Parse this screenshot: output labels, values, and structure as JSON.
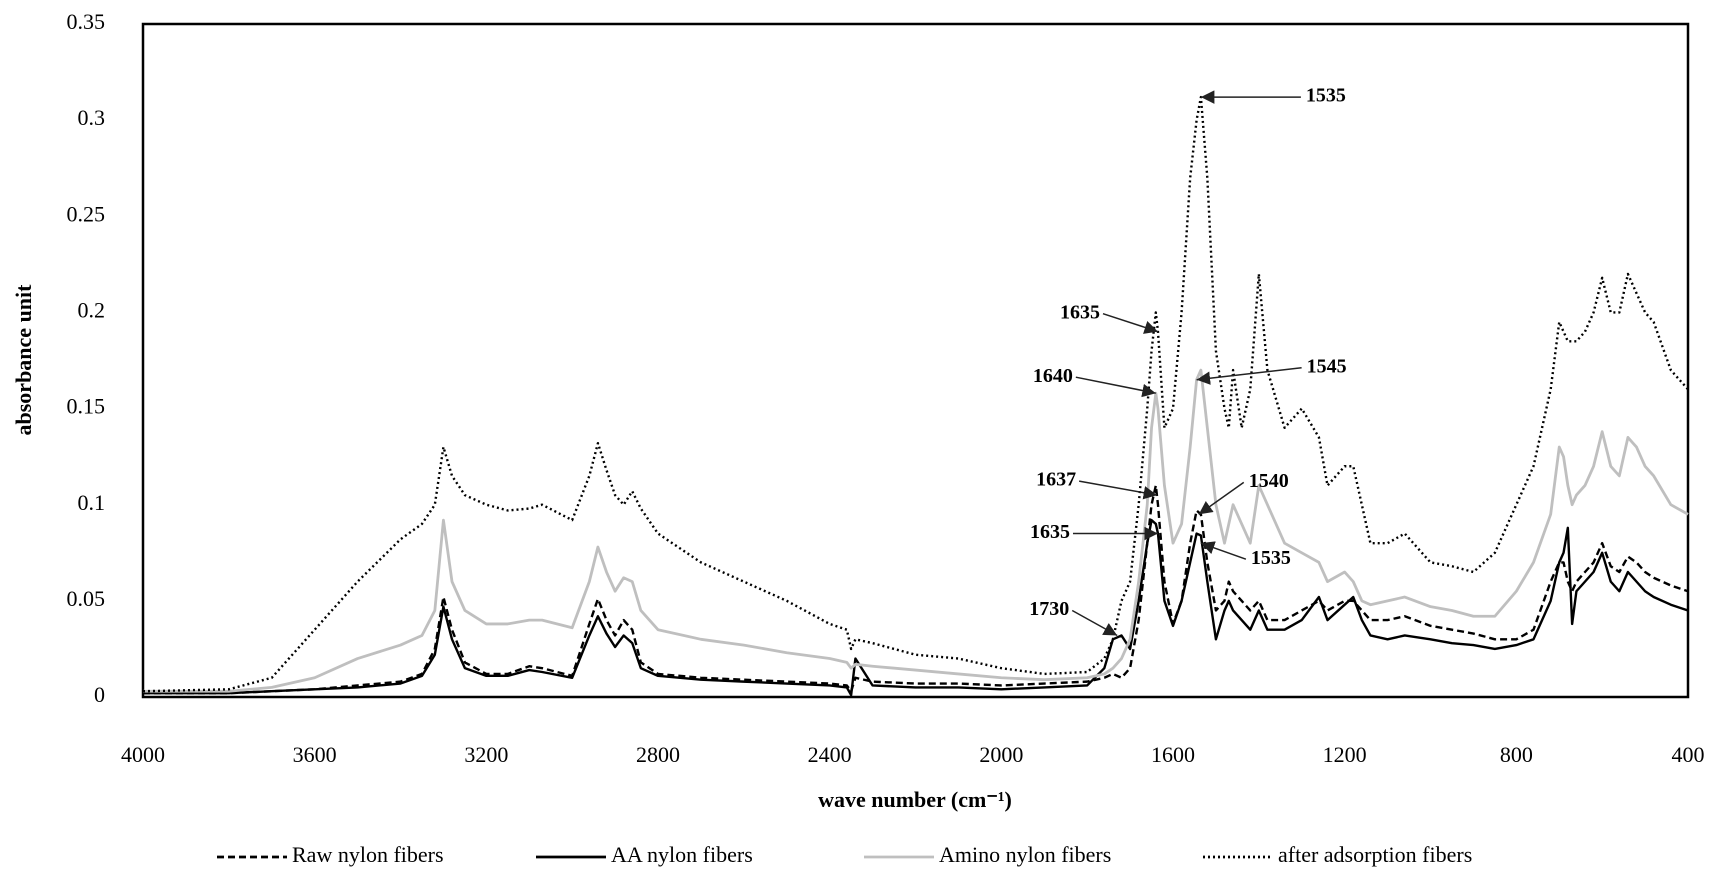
{
  "chart_data": {
    "type": "line",
    "xlabel": "wave number (cm⁻¹)",
    "ylabel": "absorbance unit",
    "xlim": [
      4000,
      400
    ],
    "xticks": [
      4000,
      3600,
      3200,
      2800,
      2400,
      2000,
      1600,
      1200,
      800,
      400
    ],
    "ylim": [
      0,
      0.35
    ],
    "yticks": [
      0,
      0.05,
      0.1,
      0.15,
      0.2,
      0.25,
      0.3,
      0.35
    ],
    "grid": false,
    "legend": "bottom",
    "x": [
      4000,
      3800,
      3700,
      3600,
      3500,
      3400,
      3350,
      3320,
      3300,
      3280,
      3250,
      3200,
      3150,
      3100,
      3070,
      3000,
      2960,
      2940,
      2920,
      2900,
      2880,
      2860,
      2840,
      2800,
      2700,
      2600,
      2500,
      2400,
      2360,
      2350,
      2340,
      2300,
      2200,
      2100,
      2000,
      1900,
      1800,
      1760,
      1740,
      1720,
      1700,
      1680,
      1660,
      1650,
      1640,
      1635,
      1620,
      1600,
      1580,
      1560,
      1545,
      1535,
      1520,
      1500,
      1480,
      1470,
      1460,
      1440,
      1420,
      1400,
      1380,
      1340,
      1300,
      1260,
      1240,
      1200,
      1180,
      1160,
      1140,
      1100,
      1060,
      1000,
      950,
      900,
      850,
      800,
      760,
      720,
      700,
      690,
      680,
      670,
      660,
      640,
      620,
      600,
      580,
      560,
      540,
      520,
      500,
      480,
      440,
      400
    ],
    "series": [
      {
        "name": "Raw nylon fibers",
        "color": "#000000",
        "line_style": "dashed",
        "values": [
          0.002,
          0.002,
          0.003,
          0.004,
          0.006,
          0.008,
          0.012,
          0.025,
          0.052,
          0.035,
          0.018,
          0.012,
          0.012,
          0.016,
          0.015,
          0.011,
          0.038,
          0.051,
          0.04,
          0.032,
          0.04,
          0.035,
          0.018,
          0.012,
          0.01,
          0.009,
          0.008,
          0.007,
          0.006,
          0.003,
          0.01,
          0.008,
          0.007,
          0.007,
          0.006,
          0.007,
          0.008,
          0.01,
          0.012,
          0.01,
          0.015,
          0.04,
          0.08,
          0.1,
          0.11,
          0.1,
          0.06,
          0.038,
          0.05,
          0.08,
          0.097,
          0.095,
          0.07,
          0.045,
          0.05,
          0.06,
          0.055,
          0.05,
          0.045,
          0.05,
          0.04,
          0.04,
          0.045,
          0.05,
          0.045,
          0.05,
          0.05,
          0.045,
          0.04,
          0.04,
          0.042,
          0.037,
          0.035,
          0.033,
          0.03,
          0.03,
          0.035,
          0.06,
          0.07,
          0.07,
          0.06,
          0.055,
          0.06,
          0.065,
          0.07,
          0.08,
          0.068,
          0.065,
          0.073,
          0.07,
          0.065,
          0.062,
          0.058,
          0.055
        ]
      },
      {
        "name": "AA nylon fibers",
        "color": "#000000",
        "line_style": "solid",
        "values": [
          0.002,
          0.002,
          0.003,
          0.004,
          0.005,
          0.007,
          0.011,
          0.022,
          0.047,
          0.03,
          0.015,
          0.011,
          0.011,
          0.014,
          0.013,
          0.01,
          0.032,
          0.042,
          0.033,
          0.026,
          0.032,
          0.028,
          0.015,
          0.011,
          0.009,
          0.008,
          0.007,
          0.006,
          0.005,
          0.001,
          0.02,
          0.006,
          0.005,
          0.005,
          0.004,
          0.005,
          0.006,
          0.015,
          0.03,
          0.032,
          0.025,
          0.05,
          0.08,
          0.092,
          0.09,
          0.085,
          0.05,
          0.037,
          0.05,
          0.07,
          0.085,
          0.084,
          0.06,
          0.03,
          0.045,
          0.05,
          0.045,
          0.04,
          0.035,
          0.045,
          0.035,
          0.035,
          0.04,
          0.052,
          0.04,
          0.048,
          0.052,
          0.04,
          0.032,
          0.03,
          0.032,
          0.03,
          0.028,
          0.027,
          0.025,
          0.027,
          0.03,
          0.05,
          0.07,
          0.075,
          0.088,
          0.038,
          0.055,
          0.06,
          0.065,
          0.075,
          0.06,
          0.055,
          0.065,
          0.06,
          0.055,
          0.052,
          0.048,
          0.045
        ]
      },
      {
        "name": "Amino nylon fibers",
        "color": "#bfbfbf",
        "line_style": "solid",
        "values": [
          0.003,
          0.003,
          0.005,
          0.01,
          0.02,
          0.027,
          0.032,
          0.045,
          0.092,
          0.06,
          0.045,
          0.038,
          0.038,
          0.04,
          0.04,
          0.036,
          0.06,
          0.078,
          0.065,
          0.055,
          0.062,
          0.06,
          0.045,
          0.035,
          0.03,
          0.027,
          0.023,
          0.02,
          0.018,
          0.015,
          0.017,
          0.016,
          0.014,
          0.012,
          0.01,
          0.009,
          0.01,
          0.012,
          0.015,
          0.02,
          0.03,
          0.06,
          0.1,
          0.14,
          0.158,
          0.15,
          0.11,
          0.08,
          0.09,
          0.13,
          0.165,
          0.17,
          0.14,
          0.1,
          0.08,
          0.09,
          0.1,
          0.09,
          0.08,
          0.11,
          0.1,
          0.08,
          0.075,
          0.07,
          0.06,
          0.065,
          0.06,
          0.05,
          0.048,
          0.05,
          0.052,
          0.047,
          0.045,
          0.042,
          0.042,
          0.055,
          0.07,
          0.095,
          0.13,
          0.125,
          0.11,
          0.1,
          0.105,
          0.11,
          0.12,
          0.138,
          0.12,
          0.115,
          0.135,
          0.13,
          0.12,
          0.115,
          0.1,
          0.095
        ]
      },
      {
        "name": "after adsorption fibers",
        "color": "#000000",
        "line_style": "dotted",
        "values": [
          0.003,
          0.004,
          0.01,
          0.035,
          0.06,
          0.082,
          0.09,
          0.1,
          0.13,
          0.115,
          0.105,
          0.1,
          0.097,
          0.098,
          0.1,
          0.092,
          0.115,
          0.132,
          0.118,
          0.105,
          0.1,
          0.107,
          0.098,
          0.085,
          0.07,
          0.06,
          0.05,
          0.038,
          0.035,
          0.025,
          0.03,
          0.028,
          0.022,
          0.02,
          0.015,
          0.012,
          0.013,
          0.02,
          0.03,
          0.05,
          0.06,
          0.1,
          0.15,
          0.18,
          0.2,
          0.19,
          0.14,
          0.15,
          0.2,
          0.27,
          0.3,
          0.312,
          0.27,
          0.18,
          0.15,
          0.14,
          0.17,
          0.14,
          0.16,
          0.22,
          0.17,
          0.14,
          0.15,
          0.135,
          0.11,
          0.12,
          0.12,
          0.1,
          0.08,
          0.08,
          0.085,
          0.07,
          0.068,
          0.065,
          0.075,
          0.1,
          0.12,
          0.16,
          0.195,
          0.19,
          0.185,
          0.185,
          0.185,
          0.19,
          0.2,
          0.218,
          0.2,
          0.2,
          0.22,
          0.21,
          0.2,
          0.195,
          0.17,
          0.16
        ]
      }
    ],
    "annotations": [
      {
        "text": "1535",
        "x": 1535,
        "y": 0.312
      },
      {
        "text": "1635",
        "x": 1635,
        "y": 0.19
      },
      {
        "text": "1640",
        "x": 1640,
        "y": 0.158
      },
      {
        "text": "1545",
        "x": 1545,
        "y": 0.165
      },
      {
        "text": "1637",
        "x": 1637,
        "y": 0.105
      },
      {
        "text": "1540",
        "x": 1540,
        "y": 0.095
      },
      {
        "text": "1635",
        "x": 1635,
        "y": 0.085
      },
      {
        "text": "1535",
        "x": 1535,
        "y": 0.08
      },
      {
        "text": "1730",
        "x": 1730,
        "y": 0.032
      }
    ]
  }
}
